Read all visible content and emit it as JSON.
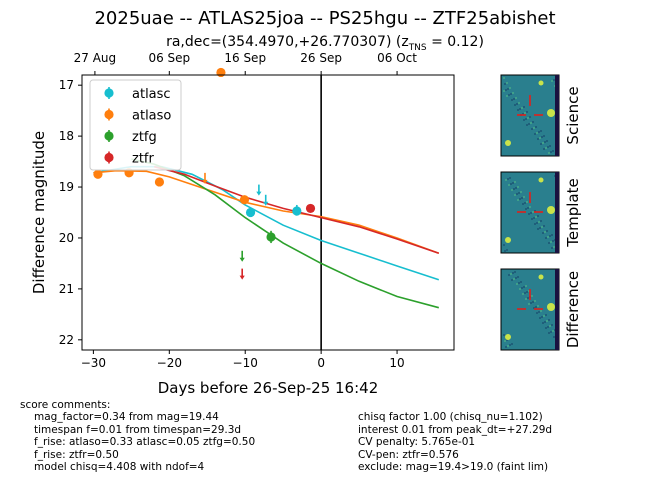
{
  "title": "2025uae -- ATLAS25joa -- PS25hgu -- ZTF25abishet",
  "subtitle": "ra,dec=(354.4970,+26.770307) (z",
  "subtitle_sub": "TNS",
  "subtitle_tail": " = 0.12)",
  "chart_data": {
    "type": "scatter",
    "xlabel": "Days before 26-Sep-25 16:42",
    "ylabel": "Difference magnitude",
    "xlim": [
      -31.5,
      17.5
    ],
    "ylim": [
      22.2,
      16.8
    ],
    "y_inverted": true,
    "x_ticks": [
      -30,
      -20,
      -10,
      0,
      10
    ],
    "y_ticks": [
      17,
      18,
      19,
      20,
      21,
      22
    ],
    "top_axis_ticks": [
      {
        "x": -29.8,
        "label": "27 Aug"
      },
      {
        "x": -20.0,
        "label": "06 Sep"
      },
      {
        "x": -10.0,
        "label": "16 Sep"
      },
      {
        "x": 0.0,
        "label": "26 Sep"
      },
      {
        "x": 10.0,
        "label": "06 Oct"
      }
    ],
    "vline_x": 0,
    "legend_position": "upper left",
    "series": [
      {
        "name": "atlasc",
        "color": "#17becf",
        "points": [
          {
            "x": -9.3,
            "y": 19.5,
            "err": 0.08
          },
          {
            "x": -3.2,
            "y": 19.47,
            "err": 0.06
          }
        ],
        "upper_limits": [
          {
            "x": -8.2,
            "y": 19.05
          },
          {
            "x": -7.3,
            "y": 19.25
          },
          {
            "x": -3.2,
            "y": 19.45
          }
        ],
        "model": [
          [
            -30,
            18.72
          ],
          [
            -25,
            18.6
          ],
          [
            -21,
            18.6
          ],
          [
            -17,
            18.75
          ],
          [
            -13,
            19.05
          ],
          [
            -10,
            19.35
          ],
          [
            -5,
            19.75
          ],
          [
            0,
            20.05
          ],
          [
            5,
            20.3
          ],
          [
            10,
            20.55
          ],
          [
            15.5,
            20.82
          ]
        ]
      },
      {
        "name": "atlaso",
        "color": "#ff7f0e",
        "points": [
          {
            "x": -29.4,
            "y": 18.75,
            "err": 0.05
          },
          {
            "x": -25.3,
            "y": 18.72,
            "err": 0.05
          },
          {
            "x": -21.3,
            "y": 18.9,
            "err": 0.05
          },
          {
            "x": -10.1,
            "y": 19.25,
            "err": 0.05
          },
          {
            "x": -13.2,
            "y": 16.75,
            "err": 0.05
          }
        ],
        "upper_limits": [
          {
            "x": -15.3,
            "y": 18.82
          }
        ],
        "model": [
          [
            -30,
            18.72
          ],
          [
            -27,
            18.68
          ],
          [
            -23,
            18.69
          ],
          [
            -20,
            18.8
          ],
          [
            -15,
            19.05
          ],
          [
            -10,
            19.3
          ],
          [
            -5,
            19.47
          ],
          [
            0,
            19.58
          ],
          [
            5,
            19.75
          ],
          [
            10,
            20.0
          ],
          [
            15.5,
            20.3
          ]
        ]
      },
      {
        "name": "ztfg",
        "color": "#2ca02c",
        "points": [
          {
            "x": -6.6,
            "y": 19.98,
            "err": 0.12
          }
        ],
        "upper_limits": [
          {
            "x": -10.4,
            "y": 20.35
          }
        ],
        "model": [
          [
            -25,
            18.45
          ],
          [
            -22,
            18.55
          ],
          [
            -18,
            18.78
          ],
          [
            -14,
            19.15
          ],
          [
            -10,
            19.6
          ],
          [
            -5,
            20.1
          ],
          [
            0,
            20.5
          ],
          [
            5,
            20.85
          ],
          [
            10,
            21.15
          ],
          [
            15.5,
            21.37
          ]
        ]
      },
      {
        "name": "ztfr",
        "color": "#d62728",
        "points": [
          {
            "x": -1.4,
            "y": 19.42,
            "err": 0.04
          }
        ],
        "upper_limits": [
          {
            "x": -10.4,
            "y": 20.7
          }
        ],
        "model": [
          [
            -22,
            18.6
          ],
          [
            -18,
            18.75
          ],
          [
            -14,
            18.98
          ],
          [
            -10,
            19.2
          ],
          [
            -5,
            19.42
          ],
          [
            0,
            19.6
          ],
          [
            5,
            19.78
          ],
          [
            10,
            20.02
          ],
          [
            15.5,
            20.3
          ]
        ]
      }
    ]
  },
  "stamps": [
    {
      "label": "Science"
    },
    {
      "label": "Template"
    },
    {
      "label": "Difference"
    }
  ],
  "comments_title": "score comments:",
  "comments_left": [
    "mag_factor=0.34 from mag=19.44",
    "timespan f=0.01 from timespan=29.3d",
    "f_rise: atlaso=0.33 atlasc=0.05 ztfg=0.50",
    "f_rise: ztfr=0.50",
    "model chisq=4.408 with ndof=4"
  ],
  "comments_right": [
    "chisq factor 1.00 (chisq_nu=1.102)",
    "interest 0.01 from peak_dt=+27.29d",
    "CV penalty: 5.765e-01",
    "CV-pen: ztfr=0.576",
    "exclude: mag=19.4>19.0 (faint lim)"
  ],
  "colors": {
    "stamp_bg": "#2a7f8e",
    "stamp_cross": "#e0201c",
    "axis": "#000000"
  }
}
